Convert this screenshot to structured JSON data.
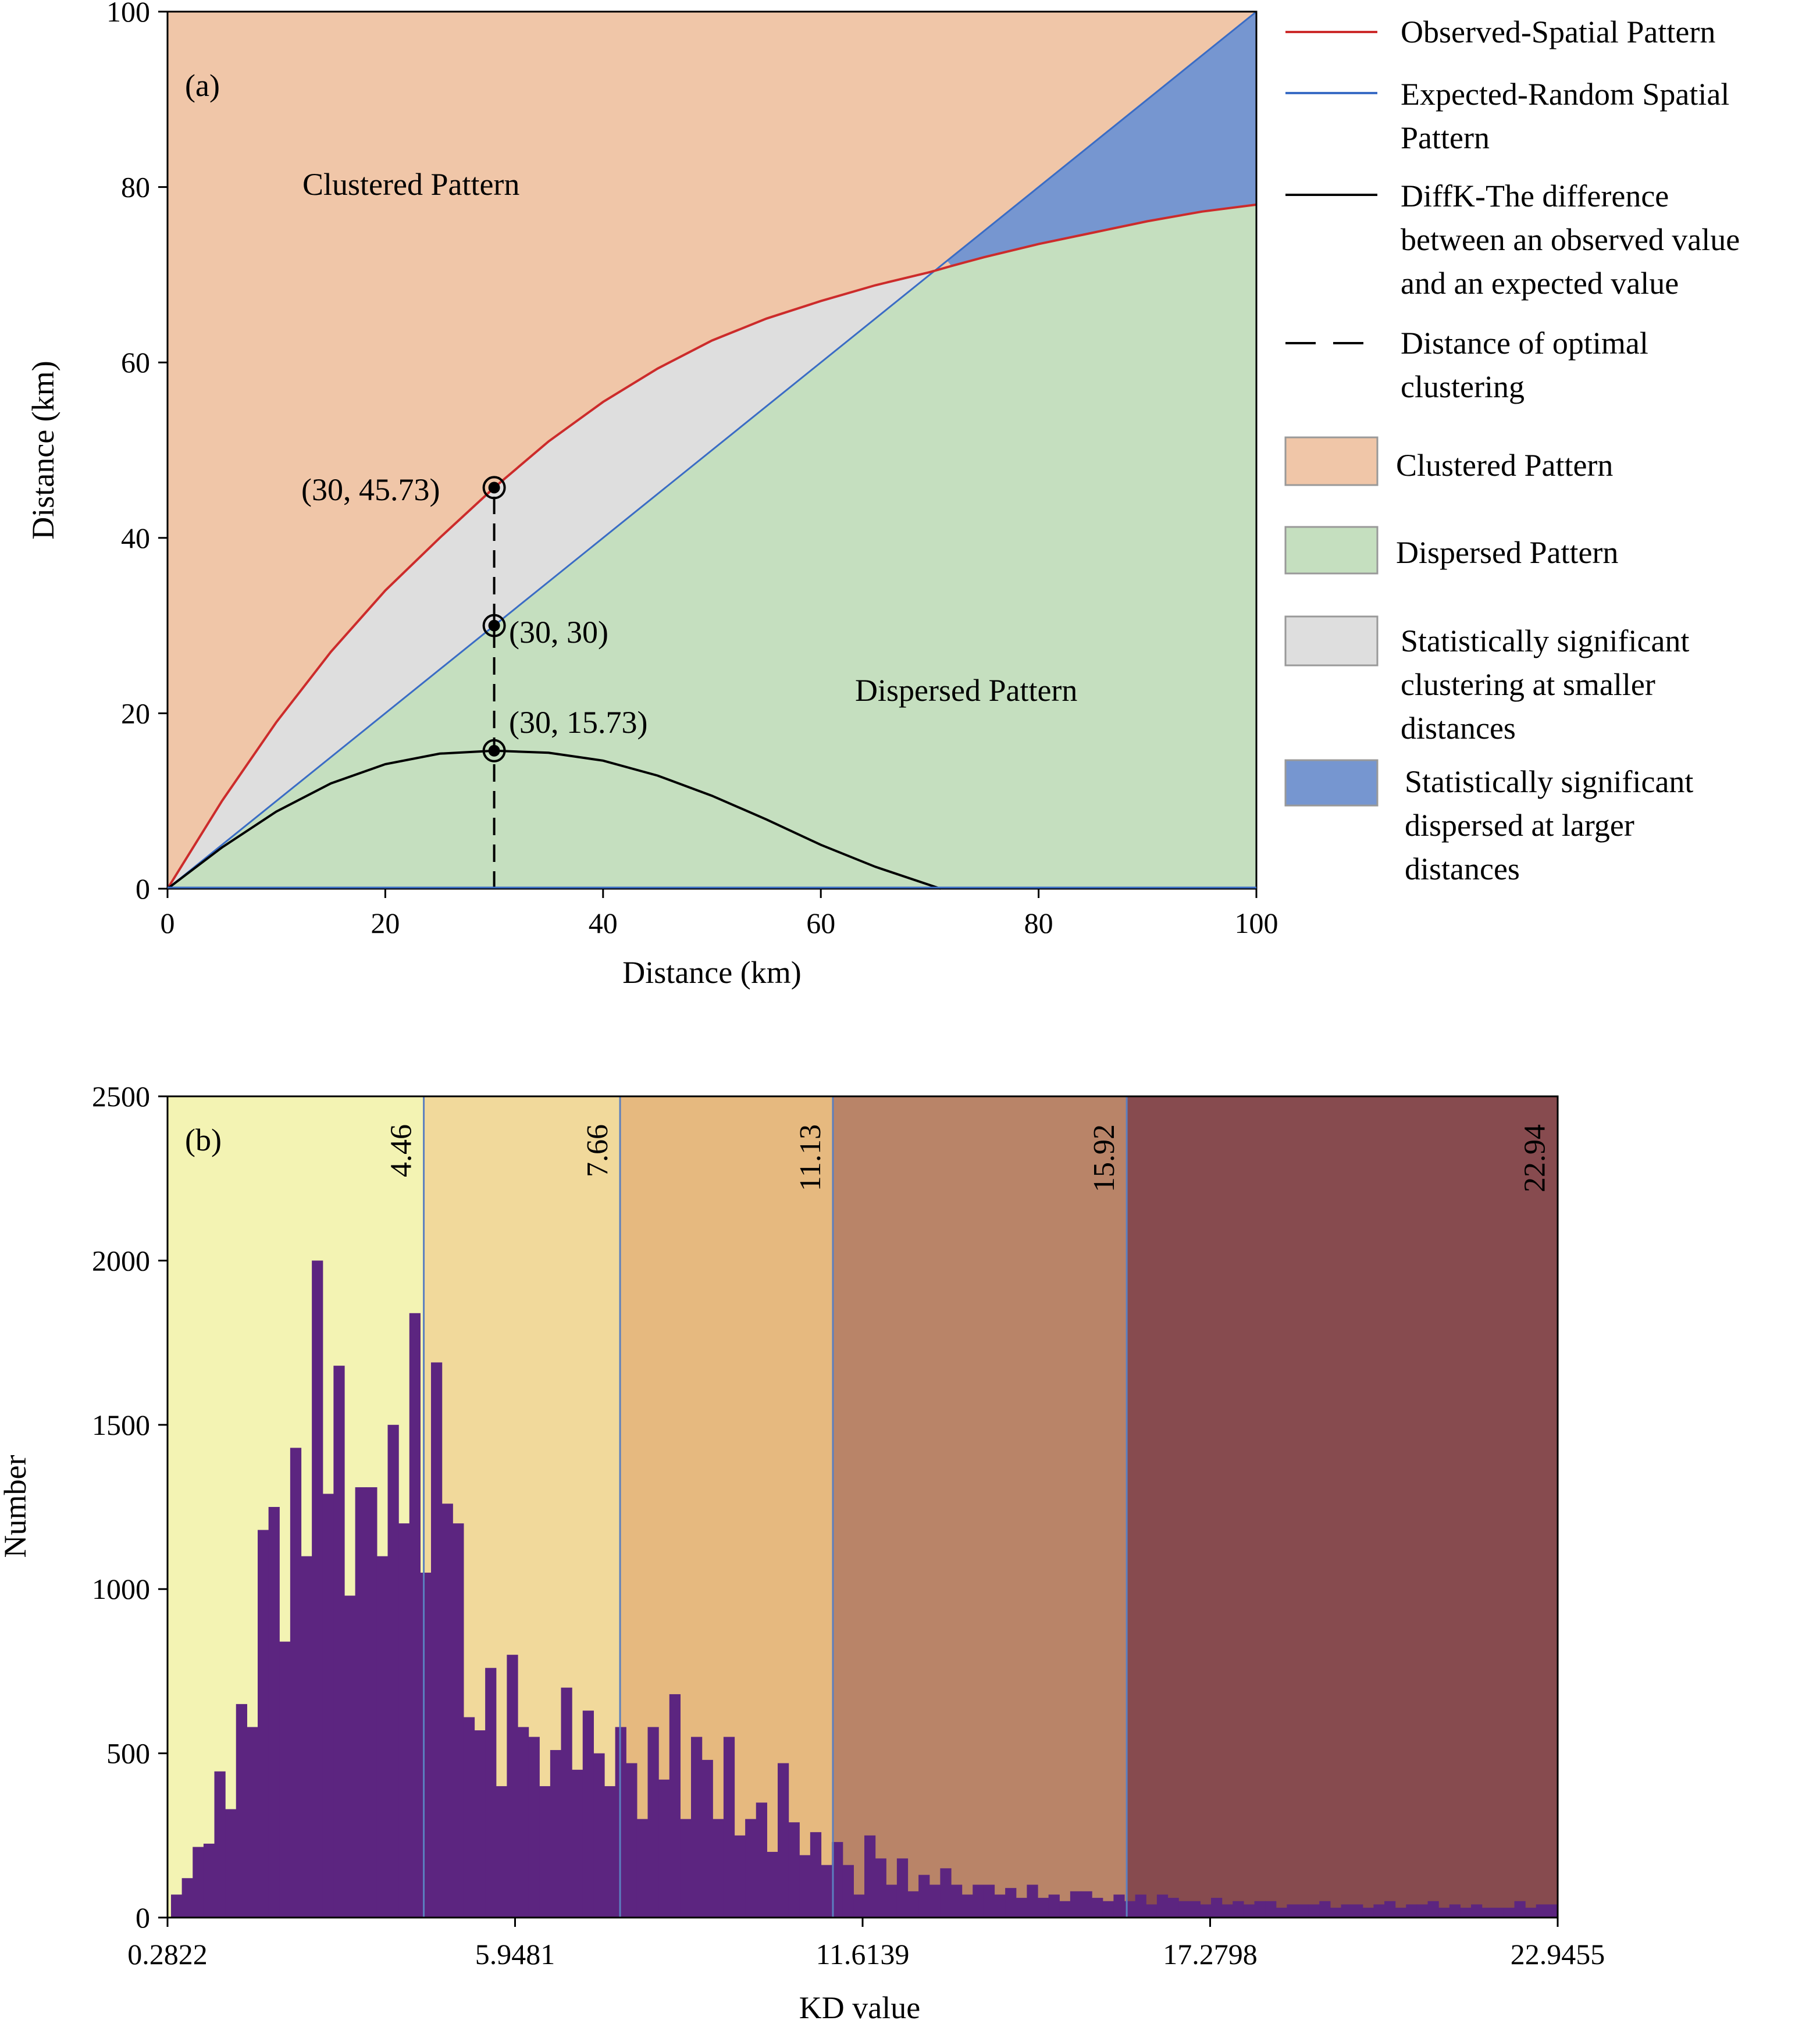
{
  "chart_data": [
    {
      "type": "line",
      "panel_label": "(a)",
      "xlabel": "Distance (km)",
      "ylabel": "Distance (km)",
      "xlim": [
        0,
        100
      ],
      "ylim": [
        0,
        100
      ],
      "xticks": [
        "0",
        "20",
        "40",
        "60",
        "80",
        "100"
      ],
      "yticks": [
        "0",
        "20",
        "40",
        "60",
        "80",
        "100"
      ],
      "grid": false,
      "legend_position": "right",
      "series": [
        {
          "name": "Observed-Spatial Pattern",
          "color": "#cc2b2b",
          "x": [
            0,
            5,
            10,
            15,
            20,
            25,
            30,
            35,
            40,
            45,
            50,
            55,
            60,
            65,
            70,
            72,
            75,
            80,
            85,
            90,
            95,
            100
          ],
          "y": [
            0,
            10,
            19,
            27,
            34,
            40,
            45.73,
            51,
            55.5,
            59.3,
            62.5,
            65,
            67,
            68.8,
            70.3,
            71,
            72,
            73.5,
            74.8,
            76.1,
            77.2,
            78
          ]
        },
        {
          "name": "Expected-Random Spatial Pattern",
          "color": "#3a6cc5",
          "x": [
            0,
            100
          ],
          "y": [
            0,
            100
          ]
        },
        {
          "name": "DiffK-The difference between an observed value and an expected value",
          "color": "#000000",
          "x": [
            0,
            5,
            10,
            15,
            20,
            25,
            30,
            35,
            40,
            45,
            50,
            55,
            60,
            65,
            71
          ],
          "y": [
            0,
            4.7,
            8.8,
            12,
            14.2,
            15.4,
            15.73,
            15.5,
            14.6,
            12.9,
            10.6,
            7.9,
            5,
            2.5,
            0
          ]
        },
        {
          "name": "Distance of optimal clustering",
          "style": "dashed",
          "color": "#000000",
          "x": [
            30,
            30
          ],
          "y": [
            0,
            45.73
          ]
        }
      ],
      "regions": [
        {
          "name": "Clustered Pattern",
          "color": "#f0c6a8"
        },
        {
          "name": "Dispersed Pattern",
          "color": "#c5dfbf"
        },
        {
          "name": "Statistically significant clustering at smaller distances",
          "color": "#dedede"
        },
        {
          "name": "Statistically significant dispersed at larger distances",
          "color": "#7696d0"
        }
      ],
      "region_labels": [
        {
          "text": "Clustered Pattern",
          "x": 25,
          "y": 80
        },
        {
          "text": "Dispersed Pattern",
          "x": 75,
          "y": 22
        }
      ],
      "points": [
        {
          "x": 30,
          "y": 45.73,
          "label": "(30, 45.73)"
        },
        {
          "x": 30,
          "y": 30,
          "label": "(30, 30)"
        },
        {
          "x": 30,
          "y": 15.73,
          "label": "(30, 15.73)"
        }
      ]
    },
    {
      "type": "bar",
      "panel_label": "(b)",
      "xlabel": "KD value",
      "ylabel": "Number",
      "xlim": [
        0.2822,
        22.9455
      ],
      "ylim": [
        0,
        2500
      ],
      "xticks": [
        "0.2822",
        "5.9481",
        "11.6139",
        "17.2798",
        "22.9455"
      ],
      "yticks": [
        "0",
        "500",
        "1000",
        "1500",
        "2000",
        "2500"
      ],
      "grid": false,
      "bar_color": "#5c2580",
      "breaks": [
        "4.46",
        "7.66",
        "11.13",
        "15.92",
        "22.94"
      ],
      "classes": [
        {
          "from": 0.2822,
          "to": 4.46,
          "color": "#f3f3b3"
        },
        {
          "from": 4.46,
          "to": 7.66,
          "color": "#f1d99b"
        },
        {
          "from": 7.66,
          "to": 11.13,
          "color": "#e6b97f"
        },
        {
          "from": 11.13,
          "to": 15.92,
          "color": "#b98468"
        },
        {
          "from": 15.92,
          "to": 22.9455,
          "color": "#874b4f"
        }
      ],
      "values": [
        70,
        120,
        215,
        225,
        445,
        330,
        650,
        580,
        1180,
        1250,
        840,
        1430,
        1100,
        2000,
        1290,
        1680,
        980,
        1310,
        1310,
        1100,
        1500,
        1200,
        1840,
        1050,
        1690,
        1260,
        1200,
        610,
        570,
        760,
        400,
        800,
        580,
        550,
        400,
        510,
        700,
        450,
        630,
        500,
        400,
        580,
        470,
        300,
        580,
        420,
        680,
        300,
        550,
        480,
        300,
        550,
        250,
        300,
        350,
        200,
        470,
        290,
        190,
        260,
        160,
        230,
        160,
        70,
        250,
        180,
        100,
        180,
        80,
        130,
        100,
        150,
        100,
        70,
        100,
        100,
        70,
        90,
        60,
        100,
        60,
        70,
        50,
        80,
        80,
        60,
        50,
        70,
        50,
        70,
        40,
        70,
        60,
        50,
        50,
        40,
        60,
        40,
        50,
        40,
        50,
        50,
        30,
        40,
        40,
        40,
        50,
        30,
        40,
        40,
        30,
        40,
        50,
        30,
        40,
        40,
        50,
        30,
        40,
        30,
        40,
        30,
        30,
        30,
        50,
        30,
        40,
        40
      ]
    }
  ],
  "labels": {
    "panel_a": "(a)",
    "panel_b": "(b)",
    "a_xlabel": "Distance (km)",
    "a_ylabel": "Distance (km)",
    "b_xlabel": "KD value",
    "b_ylabel": "Number",
    "clustered_region": "Clustered Pattern",
    "dispersed_region": "Dispersed Pattern",
    "pt1": "(30, 45.73)",
    "pt2": "(30, 30)",
    "pt3": "(30, 15.73)"
  },
  "legend": {
    "observed": "Observed-Spatial Pattern",
    "expected_1": "Expected-Random Spatial",
    "expected_2": "Pattern",
    "diffk_1": "DiffK-The difference",
    "diffk_2": "between an observed value",
    "diffk_3": "and an expected value",
    "optimal_1": "Distance of optimal",
    "optimal_2": "clustering",
    "clustered": "Clustered Pattern",
    "dispersed": "Dispersed Pattern",
    "sig_cluster_1": "Statistically significant",
    "sig_cluster_2": "clustering at smaller",
    "sig_cluster_3": "distances",
    "sig_disp_1": "Statistically significant",
    "sig_disp_2": "dispersed at larger",
    "sig_disp_3": "distances"
  }
}
